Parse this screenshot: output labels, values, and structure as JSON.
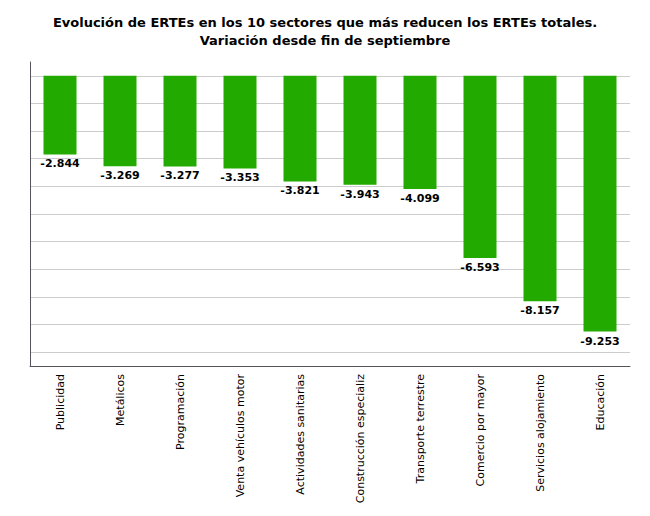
{
  "chart_data": {
    "type": "bar",
    "title": "Evolución de ERTEs en los 10 sectores que más reducen los ERTEs totales.\nVariación desde fin de septiembre",
    "categories": [
      "Publicidad",
      "Metálicos",
      "Programación",
      "Venta vehículos motor",
      "Actividades sanitarias",
      "Construcción especializ",
      "Transporte terrestre",
      "Comercio por mayor",
      "Servicios alojamiento",
      "Educación"
    ],
    "values": [
      -2844,
      -3269,
      -3277,
      -3353,
      -3821,
      -3943,
      -4099,
      -6593,
      -8157,
      -9253
    ],
    "value_labels": [
      "-2.844",
      "-3.269",
      "-3.277",
      "-3.353",
      "-3.821",
      "-3.943",
      "-4.099",
      "-6.593",
      "-8.157",
      "-9.253"
    ],
    "data_labels": true,
    "color": "#22aa00",
    "ylim": [
      -10500,
      500
    ],
    "yticks": [
      0,
      -1000,
      -2000,
      -3000,
      -4000,
      -5000,
      -6000,
      -7000,
      -8000,
      -9000,
      -10000
    ],
    "grid": true,
    "tick_labels": "x"
  }
}
